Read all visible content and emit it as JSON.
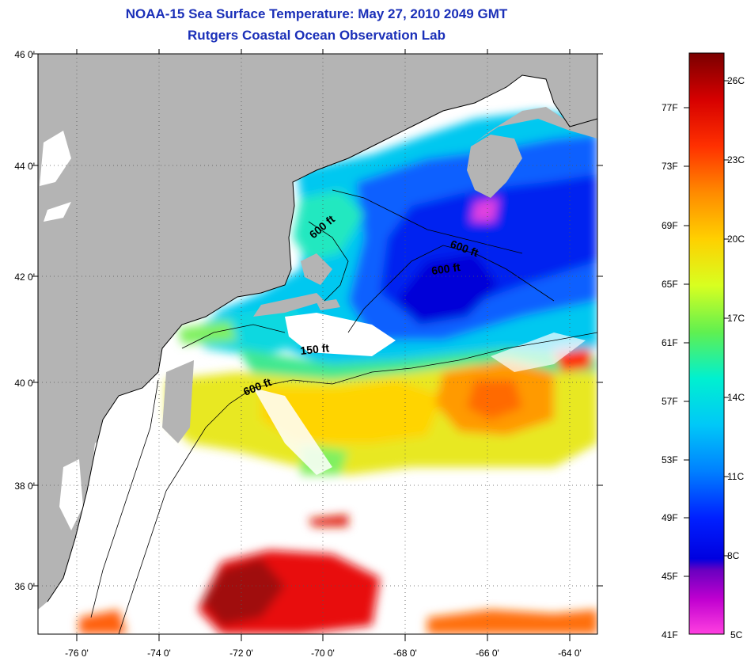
{
  "title": {
    "line1": "NOAA-15 Sea Surface Temperature:  May 27, 2010 2049 GMT",
    "line2": "Rutgers Coastal Ocean Observation Lab"
  },
  "map": {
    "lat_labels": [
      "46 0'",
      "44 0'",
      "42 0'",
      "40 0'",
      "38 0'",
      "36 0'"
    ],
    "lon_labels": [
      "-76 0'",
      "-74 0'",
      "-72 0'",
      "-70 0'",
      "-68 0'",
      "-66 0'",
      "-64 0'"
    ],
    "lat_range": [
      35.1,
      46.0
    ],
    "lon_range": [
      -77.0,
      -63.5
    ],
    "contour_labels": [
      "600 ft",
      "600 ft",
      "600 ft",
      "150 ft",
      "600 ft"
    ],
    "colors": {
      "land": "#b4b4b4",
      "no_data": "#ffffff",
      "frame": "#000000"
    }
  },
  "colorbar": {
    "fahrenheit": [
      "77F",
      "73F",
      "69F",
      "65F",
      "61F",
      "57F",
      "53F",
      "49F",
      "45F",
      "41F"
    ],
    "celsius": [
      "26C",
      "23C",
      "20C",
      "17C",
      "14C",
      "11C",
      "8C",
      "5C"
    ],
    "range_c": [
      5,
      27.5
    ],
    "colors_top_to_bottom": [
      "#7a0000",
      "#d60000",
      "#ff3000",
      "#ff8a00",
      "#ffd000",
      "#d8ff20",
      "#60f050",
      "#00f0d0",
      "#00c8f8",
      "#0080ff",
      "#0020ff",
      "#0000e0",
      "#6a00c0",
      "#c000d0",
      "#ff40e0"
    ]
  }
}
